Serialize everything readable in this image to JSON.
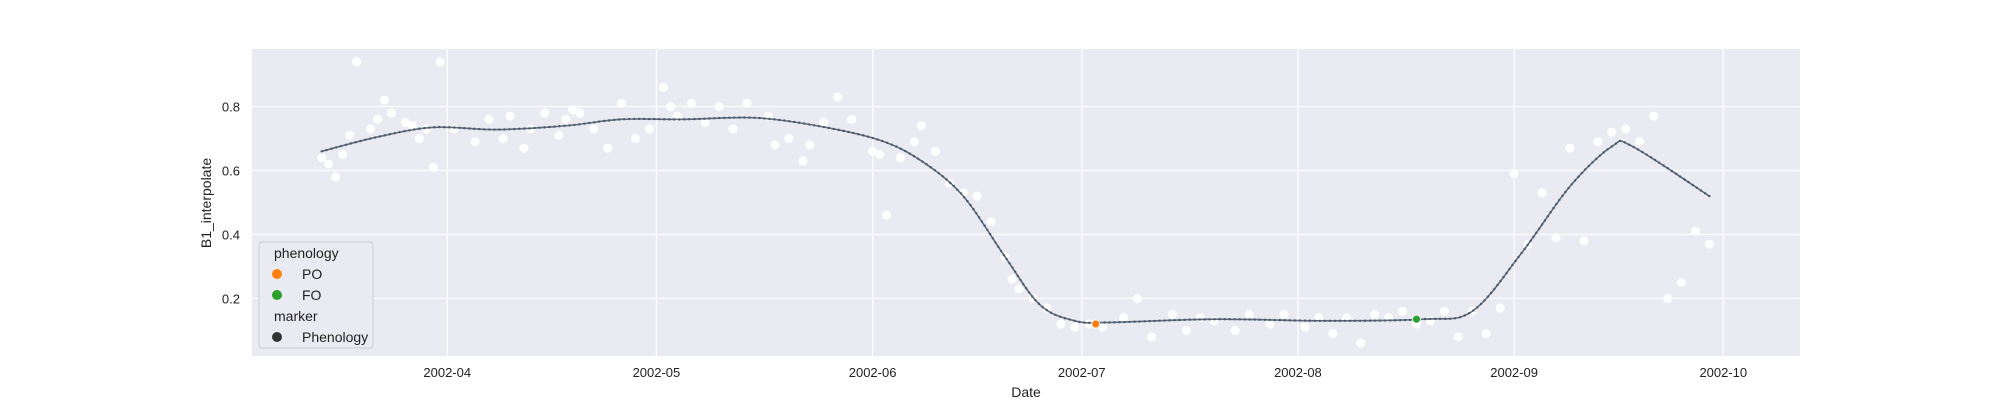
{
  "chart_data": {
    "type": "scatter",
    "title": "",
    "xlabel": "Date",
    "ylabel": "B1_interpolate",
    "xlim": [
      "2002-03-04",
      "2002-10-12"
    ],
    "ylim": [
      0.02,
      0.98
    ],
    "grid": true,
    "legend_placement": "lower-left",
    "x_ticks": [
      "2002-04-01",
      "2002-05-01",
      "2002-06-01",
      "2002-07-01",
      "2002-08-01",
      "2002-09-01",
      "2002-10-01"
    ],
    "x_tick_labels": [
      "2002-04",
      "2002-05",
      "2002-06",
      "2002-07",
      "2002-08",
      "2002-09",
      "2002-10"
    ],
    "y_ticks": [
      0.2,
      0.4,
      0.6,
      0.8
    ],
    "y_tick_labels": [
      "0.2",
      "0.4",
      "0.6",
      "0.8"
    ],
    "legend": {
      "title_1": "phenology",
      "entries_1": [
        {
          "label": "PO",
          "color": "#ff7f0e"
        },
        {
          "label": "FO",
          "color": "#2ca02c"
        }
      ],
      "title_2": "marker",
      "entries_2": [
        {
          "label": "Phenology",
          "color": "#333333"
        }
      ]
    },
    "colors": {
      "plot_background": "#eaeaf2",
      "grid": "#ffffff",
      "raw_points": "#ffffff",
      "curve": "#5d6d7e",
      "curve_markers": "#4a5868",
      "PO": "#ff7f0e",
      "FO": "#2ca02c"
    },
    "curve": {
      "name": "B1_interpolate",
      "x": [
        "2002-03-14",
        "2002-03-22",
        "2002-03-30",
        "2002-04-08",
        "2002-04-18",
        "2002-04-26",
        "2002-05-05",
        "2002-05-15",
        "2002-05-24",
        "2002-06-02",
        "2002-06-08",
        "2002-06-14",
        "2002-06-20",
        "2002-06-25",
        "2002-06-30",
        "2002-07-05",
        "2002-07-20",
        "2002-08-05",
        "2002-08-19",
        "2002-08-26",
        "2002-09-02",
        "2002-09-09",
        "2002-09-15",
        "2002-09-18",
        "2002-09-29"
      ],
      "y": [
        0.66,
        0.705,
        0.735,
        0.728,
        0.74,
        0.76,
        0.76,
        0.765,
        0.74,
        0.695,
        0.63,
        0.52,
        0.33,
        0.18,
        0.13,
        0.125,
        0.135,
        0.13,
        0.135,
        0.16,
        0.34,
        0.55,
        0.675,
        0.675,
        0.52
      ]
    },
    "raw_points": {
      "x": [
        "2002-03-14",
        "2002-03-15",
        "2002-03-16",
        "2002-03-17",
        "2002-03-18",
        "2002-03-19",
        "2002-03-21",
        "2002-03-22",
        "2002-03-23",
        "2002-03-24",
        "2002-03-26",
        "2002-03-27",
        "2002-03-28",
        "2002-03-29",
        "2002-03-30",
        "2002-03-31",
        "2002-04-02",
        "2002-04-05",
        "2002-04-07",
        "2002-04-09",
        "2002-04-10",
        "2002-04-12",
        "2002-04-13",
        "2002-04-15",
        "2002-04-17",
        "2002-04-18",
        "2002-04-19",
        "2002-04-20",
        "2002-04-22",
        "2002-04-24",
        "2002-04-26",
        "2002-04-28",
        "2002-04-30",
        "2002-05-02",
        "2002-05-03",
        "2002-05-04",
        "2002-05-06",
        "2002-05-08",
        "2002-05-10",
        "2002-05-12",
        "2002-05-14",
        "2002-05-17",
        "2002-05-18",
        "2002-05-20",
        "2002-05-22",
        "2002-05-23",
        "2002-05-25",
        "2002-05-27",
        "2002-05-29",
        "2002-06-01",
        "2002-06-02",
        "2002-06-03",
        "2002-06-05",
        "2002-06-07",
        "2002-06-08",
        "2002-06-10",
        "2002-06-12",
        "2002-06-14",
        "2002-06-16",
        "2002-06-18",
        "2002-06-20",
        "2002-06-21",
        "2002-06-22",
        "2002-06-24",
        "2002-06-26",
        "2002-06-28",
        "2002-06-30",
        "2002-07-02",
        "2002-07-04",
        "2002-07-07",
        "2002-07-09",
        "2002-07-11",
        "2002-07-14",
        "2002-07-16",
        "2002-07-18",
        "2002-07-20",
        "2002-07-23",
        "2002-07-25",
        "2002-07-28",
        "2002-07-30",
        "2002-08-02",
        "2002-08-04",
        "2002-08-06",
        "2002-08-08",
        "2002-08-10",
        "2002-08-12",
        "2002-08-14",
        "2002-08-16",
        "2002-08-18",
        "2002-08-20",
        "2002-08-22",
        "2002-08-24",
        "2002-08-26",
        "2002-08-28",
        "2002-08-30",
        "2002-09-01",
        "2002-09-03",
        "2002-09-05",
        "2002-09-07",
        "2002-09-09",
        "2002-09-11",
        "2002-09-13",
        "2002-09-15",
        "2002-09-17",
        "2002-09-19",
        "2002-09-21",
        "2002-09-23",
        "2002-09-25",
        "2002-09-27",
        "2002-09-29"
      ],
      "y": [
        0.64,
        0.62,
        0.58,
        0.65,
        0.71,
        0.94,
        0.73,
        0.76,
        0.82,
        0.78,
        0.75,
        0.74,
        0.7,
        0.73,
        0.61,
        0.94,
        0.73,
        0.69,
        0.76,
        0.7,
        0.77,
        0.67,
        0.73,
        0.78,
        0.71,
        0.76,
        0.79,
        0.78,
        0.73,
        0.67,
        0.81,
        0.7,
        0.73,
        0.86,
        0.8,
        0.77,
        0.81,
        0.75,
        0.8,
        0.73,
        0.81,
        0.77,
        0.68,
        0.7,
        0.63,
        0.68,
        0.75,
        0.83,
        0.76,
        0.66,
        0.65,
        0.46,
        0.64,
        0.69,
        0.74,
        0.66,
        0.56,
        0.53,
        0.52,
        0.44,
        0.33,
        0.26,
        0.23,
        0.2,
        0.17,
        0.12,
        0.11,
        0.12,
        0.11,
        0.14,
        0.2,
        0.08,
        0.15,
        0.1,
        0.14,
        0.13,
        0.1,
        0.15,
        0.12,
        0.15,
        0.11,
        0.14,
        0.09,
        0.14,
        0.06,
        0.15,
        0.14,
        0.16,
        0.12,
        0.13,
        0.16,
        0.08,
        0.16,
        0.09,
        0.17,
        0.59,
        0.37,
        0.53,
        0.39,
        0.67,
        0.38,
        0.69,
        0.72,
        0.73,
        0.69,
        0.77,
        0.2,
        0.25,
        0.41,
        0.37
      ]
    },
    "phenology_points": [
      {
        "label": "PO",
        "x": "2002-07-03",
        "y": 0.12
      },
      {
        "label": "FO",
        "x": "2002-08-18",
        "y": 0.135
      }
    ]
  }
}
